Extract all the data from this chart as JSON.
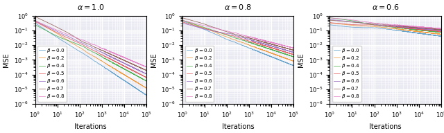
{
  "alphas": [
    1.0,
    0.8,
    0.6
  ],
  "betas": [
    0.0,
    0.2,
    0.4,
    0.5,
    0.6,
    0.7,
    0.8
  ],
  "beta_colors": [
    "#5499c7",
    "#f0922b",
    "#3dab3d",
    "#e05050",
    "#9467bd",
    "#8c564b",
    "#e377c2"
  ],
  "n_iters": 100000,
  "xlabel": "Iterations",
  "ylabel": "MSE",
  "figsize": [
    6.4,
    1.92
  ],
  "dpi": 100,
  "seed": 1234,
  "bg_color": "#eaeaf2",
  "grid_color": "white",
  "linewidth": 0.55
}
